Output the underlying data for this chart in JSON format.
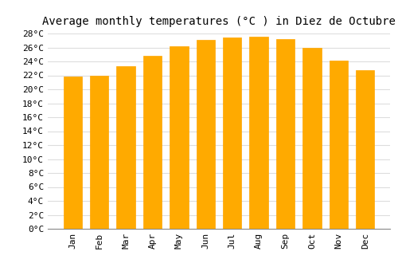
{
  "title": "Average monthly temperatures (°C ) in Diez de Octubre",
  "months": [
    "Jan",
    "Feb",
    "Mar",
    "Apr",
    "May",
    "Jun",
    "Jul",
    "Aug",
    "Sep",
    "Oct",
    "Nov",
    "Dec"
  ],
  "values": [
    21.8,
    22.0,
    23.3,
    24.8,
    26.2,
    27.1,
    27.4,
    27.5,
    27.2,
    26.0,
    24.1,
    22.7
  ],
  "bar_color": "#FFAA00",
  "bar_edge_color": "#FFA500",
  "background_color": "#FFFFFF",
  "plot_bg_color": "#FFFFFF",
  "grid_color": "#DDDDDD",
  "ylim": [
    0,
    28
  ],
  "ytick_step": 2,
  "title_fontsize": 10,
  "tick_fontsize": 8,
  "font_family": "monospace",
  "bar_width": 0.7
}
